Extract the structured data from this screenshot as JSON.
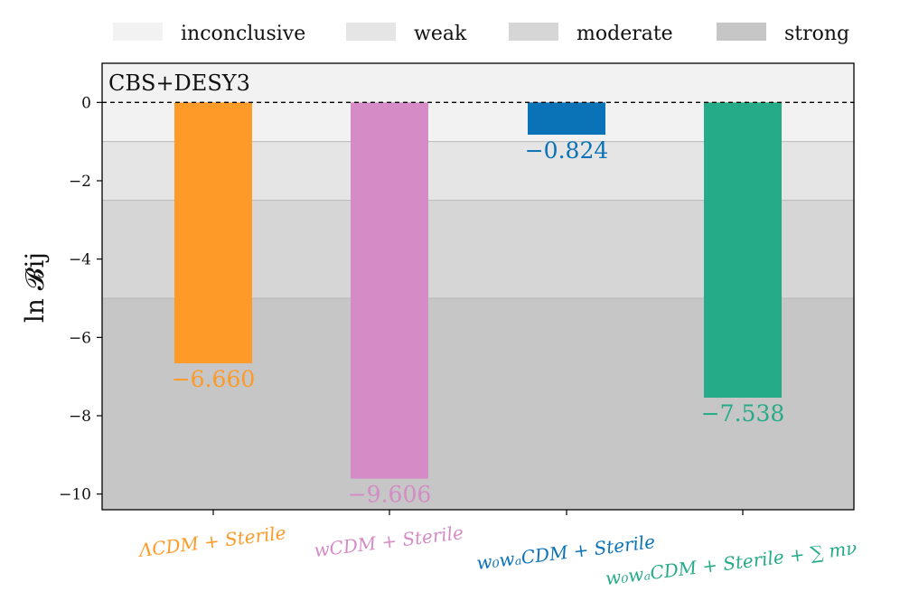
{
  "chart_data": {
    "type": "bar",
    "title": "",
    "panel_label": "CBS+DESY3",
    "xlabel": "",
    "ylabel": "ln 𝓑ij",
    "ylim": [
      -10.4,
      1.0
    ],
    "yticks": [
      0,
      -2,
      -4,
      -6,
      -8,
      -10
    ],
    "ytick_labels": [
      "0",
      "−2",
      "−4",
      "−6",
      "−8",
      "−10"
    ],
    "categories": [
      "ΛCDM + Sterile",
      "wCDM + Sterile",
      "w₀wₐCDM + Sterile",
      "w₀wₐCDM + Sterile + ∑ mν"
    ],
    "values": [
      -6.66,
      -9.606,
      -0.824,
      -7.538
    ],
    "value_labels": [
      "−6.660",
      "−9.606",
      "−0.824",
      "−7.538"
    ],
    "colors": [
      "#fd9a28",
      "#d48bc6",
      "#0a72b6",
      "#26ab88"
    ],
    "zero_line": "dashed",
    "evidence_bands": [
      {
        "name": "inconclusive",
        "from": 1.0,
        "to": -1.0,
        "color": "#f2f2f2"
      },
      {
        "name": "weak",
        "from": -1.0,
        "to": -2.5,
        "color": "#e5e5e5"
      },
      {
        "name": "moderate",
        "from": -2.5,
        "to": -5.0,
        "color": "#d6d6d6"
      },
      {
        "name": "strong",
        "from": -5.0,
        "to": -10.4,
        "color": "#c6c6c6"
      }
    ],
    "legend": {
      "placement": "top",
      "entries": [
        "inconclusive",
        "weak",
        "moderate",
        "strong"
      ]
    }
  }
}
